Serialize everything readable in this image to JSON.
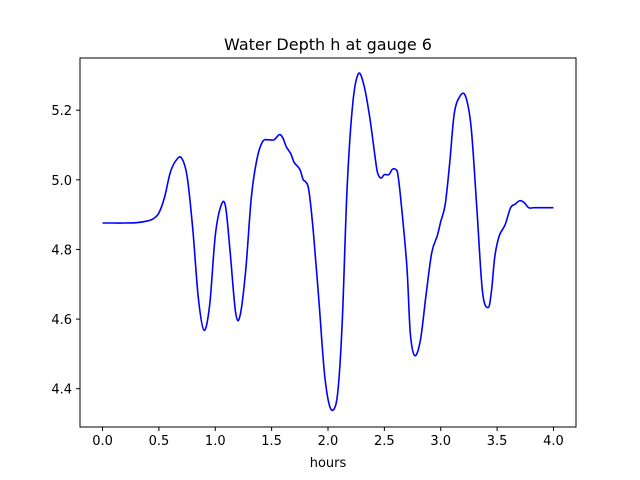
{
  "chart_data": {
    "type": "line",
    "title": "Water Depth h at gauge 6",
    "xlabel": "hours",
    "ylabel": "",
    "xlim": [
      -0.2,
      4.2
    ],
    "ylim": [
      4.29,
      5.35
    ],
    "xticks": [
      0.0,
      0.5,
      1.0,
      1.5,
      2.0,
      2.5,
      3.0,
      3.5,
      4.0
    ],
    "xtick_labels": [
      "0.0",
      "0.5",
      "1.0",
      "1.5",
      "2.0",
      "2.5",
      "3.0",
      "3.5",
      "4.0"
    ],
    "yticks": [
      4.4,
      4.6,
      4.8,
      5.0,
      5.2
    ],
    "ytick_labels": [
      "4.4",
      "4.6",
      "4.8",
      "5.0",
      "5.2"
    ],
    "grid": false,
    "series": [
      {
        "color": "#0000ff",
        "x": [
          0.0,
          0.1,
          0.2,
          0.3,
          0.4,
          0.45,
          0.5,
          0.55,
          0.6,
          0.65,
          0.7,
          0.75,
          0.8,
          0.85,
          0.9,
          0.95,
          1.0,
          1.05,
          1.09,
          1.13,
          1.18,
          1.22,
          1.27,
          1.32,
          1.37,
          1.42,
          1.47,
          1.52,
          1.57,
          1.6,
          1.63,
          1.67,
          1.7,
          1.75,
          1.78,
          1.8,
          1.83,
          1.87,
          1.92,
          1.97,
          2.02,
          2.07,
          2.1,
          2.13,
          2.17,
          2.22,
          2.27,
          2.32,
          2.37,
          2.42,
          2.44,
          2.47,
          2.5,
          2.54,
          2.57,
          2.6,
          2.62,
          2.65,
          2.7,
          2.73,
          2.77,
          2.82,
          2.87,
          2.92,
          2.97,
          3.0,
          3.04,
          3.08,
          3.12,
          3.17,
          3.22,
          3.27,
          3.32,
          3.37,
          3.42,
          3.45,
          3.48,
          3.52,
          3.57,
          3.62,
          3.66,
          3.7,
          3.74,
          3.78,
          3.83,
          3.88,
          3.92,
          3.95,
          3.98,
          4.0
        ],
        "y": [
          4.876,
          4.876,
          4.876,
          4.877,
          4.882,
          4.888,
          4.905,
          4.95,
          5.02,
          5.055,
          5.063,
          5.01,
          4.86,
          4.66,
          4.568,
          4.64,
          4.84,
          4.925,
          4.925,
          4.8,
          4.62,
          4.61,
          4.74,
          4.95,
          5.06,
          5.11,
          5.115,
          5.115,
          5.13,
          5.12,
          5.095,
          5.075,
          5.05,
          5.03,
          5.0,
          4.995,
          4.97,
          4.85,
          4.65,
          4.44,
          4.345,
          4.355,
          4.44,
          4.62,
          4.98,
          5.22,
          5.305,
          5.27,
          5.18,
          5.06,
          5.02,
          5.005,
          5.015,
          5.015,
          5.03,
          5.03,
          5.015,
          4.93,
          4.75,
          4.56,
          4.495,
          4.54,
          4.67,
          4.79,
          4.84,
          4.88,
          4.93,
          5.05,
          5.19,
          5.24,
          5.24,
          5.15,
          4.92,
          4.68,
          4.633,
          4.68,
          4.78,
          4.84,
          4.87,
          4.92,
          4.93,
          4.94,
          4.935,
          4.92,
          4.92,
          4.92,
          4.92,
          4.92,
          4.92,
          4.92
        ]
      }
    ]
  }
}
